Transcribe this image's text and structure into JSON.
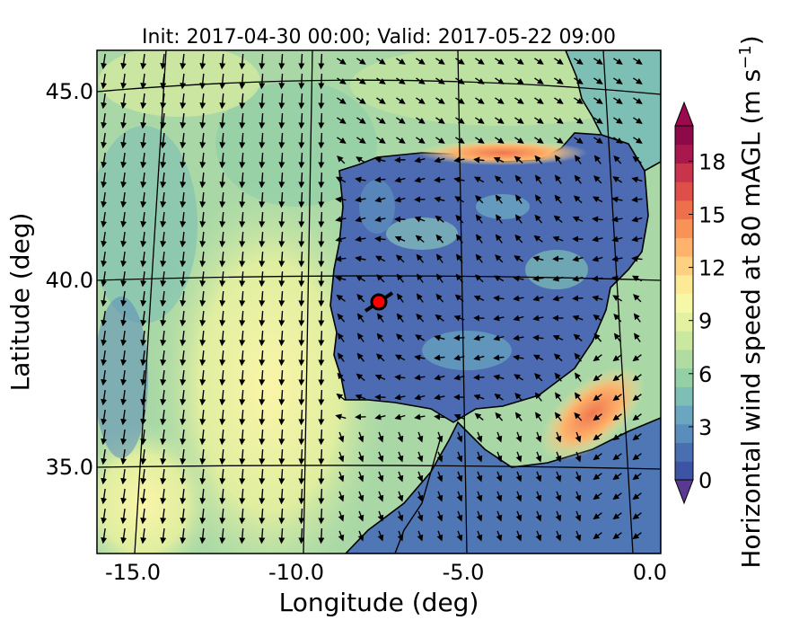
{
  "plot": {
    "title": "Init: 2017-04-30 00:00; Valid: 2017-05-22 09:00",
    "xlabel": "Longitude (deg)",
    "ylabel": "Latitude (deg)",
    "lon_ticks": [
      "-15.0",
      "-10.0",
      "-5.0",
      "0.0"
    ],
    "lat_ticks": [
      "45.0",
      "40.0",
      "35.0"
    ],
    "extent": {
      "lon": [
        -15.9,
        0.3
      ],
      "lat": [
        32.7,
        46.1
      ]
    }
  },
  "colorbar": {
    "label": "Horizontal wind speed at 80 mAGL (m s",
    "label_sup": "−1",
    "label_end": ")",
    "ticks": [
      "0",
      "3",
      "6",
      "9",
      "12",
      "15",
      "18"
    ],
    "range": [
      0,
      20
    ],
    "colors": [
      "#3b55a4",
      "#4a6fb0",
      "#5b8dbc",
      "#6aa6c0",
      "#7dbfb5",
      "#94cfa6",
      "#b0dca2",
      "#cbe89f",
      "#e3f1a0",
      "#f6f7a7",
      "#fdea97",
      "#fed182",
      "#fdb36b",
      "#f89257",
      "#ee6f4c",
      "#df4f4a",
      "#c7344b",
      "#a8174e",
      "#8d0947"
    ],
    "under_color": "#5a3a91",
    "over_color": "#9b0a4c"
  },
  "marker": {
    "lon": -7.65,
    "lat": 39.35,
    "color": "#ff0000",
    "label": ""
  },
  "fields": {
    "ocean_bg": "#b7e0a8",
    "land_bg": "#4d6fb4",
    "jet_core": "#fbf5a8",
    "strait_core": "#f4a25c"
  }
}
